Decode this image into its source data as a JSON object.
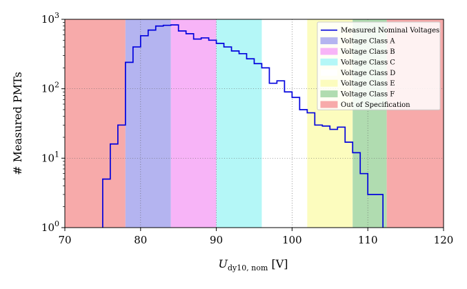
{
  "chart_data": {
    "type": "histogram",
    "title": "",
    "xlabel_main": "U",
    "xlabel_sub": "dy10, nom",
    "xlabel_unit": " [V]",
    "ylabel": "# Measured PMTs",
    "xlim": [
      70,
      120
    ],
    "ylim": [
      1,
      1000
    ],
    "yscale": "log",
    "grid": "dotted, on",
    "legend_position": "top-right",
    "x_ticks": [
      {
        "value": 70,
        "label": "70"
      },
      {
        "value": 80,
        "label": "80"
      },
      {
        "value": 90,
        "label": "90"
      },
      {
        "value": 100,
        "label": "100"
      },
      {
        "value": 110,
        "label": "110"
      },
      {
        "value": 120,
        "label": "120"
      }
    ],
    "y_ticks": [
      {
        "value": 1,
        "base": "10",
        "exp": "0"
      },
      {
        "value": 10,
        "base": "10",
        "exp": "1"
      },
      {
        "value": 100,
        "base": "10",
        "exp": "2"
      },
      {
        "value": 1000,
        "base": "10",
        "exp": "3"
      }
    ],
    "bands": [
      {
        "name": "Out of Specification",
        "from": 70,
        "to": 78,
        "color": "#f7aaaa"
      },
      {
        "name": "Voltage Class A",
        "from": 78,
        "to": 84,
        "color": "#b4b4f0"
      },
      {
        "name": "Voltage Class B",
        "from": 84,
        "to": 90,
        "color": "#f7b4f7"
      },
      {
        "name": "Voltage Class C",
        "from": 90,
        "to": 96,
        "color": "#b4f7f7"
      },
      {
        "name": "Voltage Class D",
        "from": 96,
        "to": 102,
        "color": "#ffffff"
      },
      {
        "name": "Voltage Class E",
        "from": 102,
        "to": 108,
        "color": "#fcfcbe"
      },
      {
        "name": "Voltage Class F",
        "from": 108,
        "to": 112.5,
        "color": "#b0dcb0"
      },
      {
        "name": "Out of Specification",
        "from": 112.5,
        "to": 120,
        "color": "#f7aaaa"
      }
    ],
    "legend": [
      {
        "label": "Measured Nominal Voltages",
        "kind": "line",
        "color": "#0000dd"
      },
      {
        "label": "Voltage Class A",
        "kind": "patch",
        "color": "#b4b4f0"
      },
      {
        "label": "Voltage Class B",
        "kind": "patch",
        "color": "#f7b4f7"
      },
      {
        "label": "Voltage Class C",
        "kind": "patch",
        "color": "#b4f7f7"
      },
      {
        "label": "Voltage Class D",
        "kind": "patch",
        "color": "#ffffff"
      },
      {
        "label": "Voltage Class E",
        "kind": "patch",
        "color": "#fcfcbe"
      },
      {
        "label": "Voltage Class F",
        "kind": "patch",
        "color": "#b0dcb0"
      },
      {
        "label": "Out of Specification",
        "kind": "patch",
        "color": "#f7aaaa"
      }
    ],
    "series": [
      {
        "label": "Measured Nominal Voltages",
        "color": "#0000dd",
        "bin_edges": [
          75,
          76,
          77,
          78,
          79,
          80,
          81,
          82,
          83,
          84,
          85,
          86,
          87,
          88,
          89,
          90,
          91,
          92,
          93,
          94,
          95,
          96,
          97,
          98,
          99,
          100,
          101,
          102,
          103,
          104,
          105,
          106,
          107,
          108,
          109,
          110,
          111,
          112
        ],
        "counts": [
          5,
          16,
          30,
          240,
          400,
          580,
          700,
          800,
          820,
          830,
          680,
          620,
          520,
          540,
          500,
          450,
          400,
          350,
          320,
          270,
          230,
          200,
          120,
          130,
          90,
          75,
          50,
          45,
          30,
          29,
          26,
          28,
          17,
          12,
          6,
          3,
          3
        ]
      }
    ]
  }
}
